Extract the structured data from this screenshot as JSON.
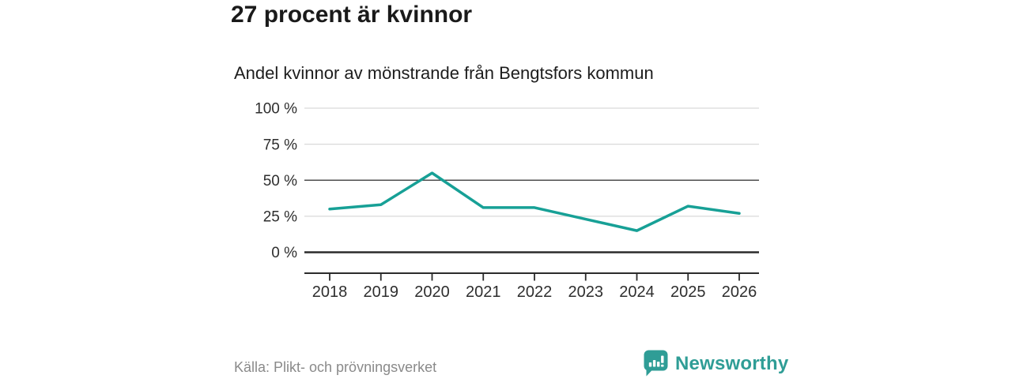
{
  "header": {
    "title": "27 procent är kvinnor",
    "subtitle": "Andel kvinnor av mönstrande från Bengtsfors kommun"
  },
  "chart_data": {
    "type": "line",
    "title": "Andel kvinnor av mönstrande från Bengtsfors kommun",
    "x": [
      "2018",
      "2019",
      "2020",
      "2021",
      "2022",
      "2023",
      "2024",
      "2025",
      "2026"
    ],
    "series": [
      {
        "name": "Andel kvinnor av mönstrande (%)",
        "values": [
          30,
          33,
          55,
          31,
          31,
          23,
          15,
          32,
          27
        ],
        "color": "#17a096"
      }
    ],
    "ylim": [
      0,
      100
    ],
    "yticks": [
      {
        "value": 100,
        "label": "100 %"
      },
      {
        "value": 75,
        "label": "75 %"
      },
      {
        "value": 50,
        "label": "50 %"
      },
      {
        "value": 25,
        "label": "25 %"
      },
      {
        "value": 0,
        "label": "0 %"
      }
    ],
    "grid": "horizontal",
    "emphasized_gridlines": [
      50,
      0
    ],
    "legend": "none"
  },
  "footer": {
    "source": "Källa: Plikt- och prövningsverket",
    "brand": "Newsworthy"
  },
  "colors": {
    "line": "#17a096",
    "grid_light": "#d9d9d9",
    "grid_mid": "#4d4d4d",
    "axis": "#2b2b2b",
    "title_text": "#1a1a1a",
    "subtitle_text": "#1d1d1d",
    "axis_text": "#2e2e2e",
    "source_text": "#8a8a8a",
    "brand_teal": "#2f9d96"
  }
}
